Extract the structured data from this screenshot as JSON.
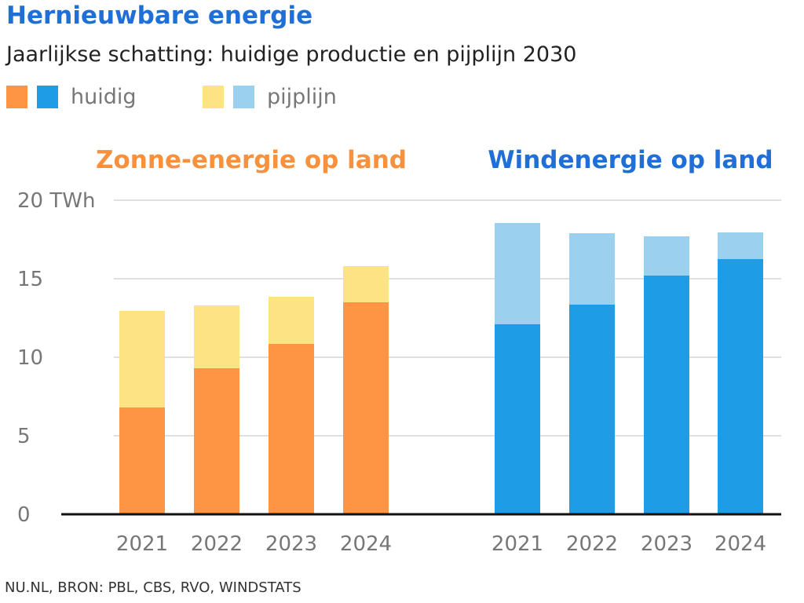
{
  "title": "Hernieuwbare energie",
  "subtitle": "Jaarlijkse schatting: huidige productie en pijplijn 2030",
  "legend": {
    "current_label": "huidig",
    "pipeline_label": "pijplijn"
  },
  "source": "NU.NL, BRON: PBL, CBS, RVO, WINDSTATS",
  "chart_data": {
    "type": "bar",
    "stacked": true,
    "ylim": [
      0,
      20
    ],
    "yticks": [
      0,
      5,
      10,
      15,
      20
    ],
    "ytick_labels": [
      "0",
      "5",
      "10",
      "15",
      "20 TWh"
    ],
    "grid": true,
    "legend_placement": "top-left",
    "panels": [
      {
        "title": "Zonne-energie op land",
        "title_color": "#f7913d",
        "categories": [
          "2021",
          "2022",
          "2023",
          "2024"
        ],
        "series": [
          {
            "name": "huidig",
            "color": "#fd9544",
            "values": [
              6.8,
              9.3,
              10.85,
              13.5
            ]
          },
          {
            "name": "pijplijn",
            "color": "#fde383",
            "values": [
              6.15,
              4.0,
              3.0,
              2.3
            ]
          }
        ]
      },
      {
        "title": "Windenergie op land",
        "title_color": "#1f6fd6",
        "categories": [
          "2021",
          "2022",
          "2023",
          "2024"
        ],
        "series": [
          {
            "name": "huidig",
            "color": "#1e9ce5",
            "values": [
              12.1,
              13.35,
              15.2,
              16.25
            ]
          },
          {
            "name": "pijplijn",
            "color": "#9bd0ef",
            "values": [
              6.45,
              4.55,
              2.5,
              1.7
            ]
          }
        ]
      }
    ]
  }
}
